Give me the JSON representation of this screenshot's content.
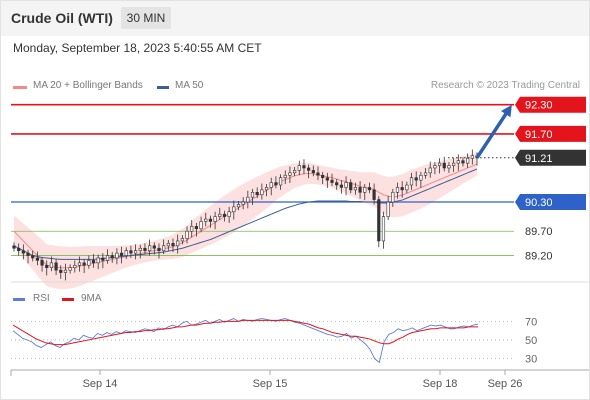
{
  "header": {
    "title": "Crude Oil (WTI)",
    "timeframe": "30 MIN"
  },
  "timestamp": "Monday, September 18, 2023 5:40:55 AM CET",
  "legend": {
    "ma20_label": "MA 20 + Bollinger Bands",
    "ma50_label": "MA 50",
    "copyright": "Research © 2023 Trading Central",
    "rsi_label": "RSI",
    "rsi_ma_label": "9MA"
  },
  "colors": {
    "resistance": "#e3141c",
    "support": "#2f62c8",
    "minor_support": "#79b94f",
    "current_price": "#333333",
    "ma20": "#f3898b",
    "ma50": "#3b5f9a",
    "bollinger_fill": "#fde0e0",
    "candle_up": "#ffffff",
    "candle_down": "#333333",
    "arrow": "#2e60b0",
    "rsi": "#5b7fd6",
    "rsi_ma": "#e0161d"
  },
  "chart_data": [
    {
      "type": "candlestick",
      "title": "",
      "ylim": [
        88.8,
        92.5
      ],
      "x_ticks": [
        "Sep 14",
        "Sep 15",
        "Sep 18",
        "Sep 26"
      ],
      "levels": [
        {
          "name": "resistance",
          "value": 92.3,
          "label": "92.30",
          "style": "resistance"
        },
        {
          "name": "resistance",
          "value": 91.7,
          "label": "91.70",
          "style": "resistance"
        },
        {
          "name": "last-price",
          "value": 91.21,
          "label": "91.21",
          "style": "current"
        },
        {
          "name": "pivot",
          "value": 90.3,
          "label": "90.30",
          "style": "support"
        },
        {
          "name": "support",
          "value": 89.7,
          "label": "89.70",
          "style": "minor"
        },
        {
          "name": "support",
          "value": 89.2,
          "label": "89.20",
          "style": "minor"
        }
      ],
      "close": [
        89.35,
        89.3,
        89.25,
        89.2,
        89.15,
        89.1,
        89.0,
        88.95,
        89.05,
        88.9,
        88.85,
        88.9,
        88.95,
        89.0,
        89.05,
        89.0,
        89.1,
        89.05,
        89.15,
        89.1,
        89.2,
        89.15,
        89.25,
        89.2,
        89.3,
        89.25,
        89.3,
        89.35,
        89.3,
        89.4,
        89.35,
        89.3,
        89.4,
        89.45,
        89.4,
        89.5,
        89.55,
        89.7,
        89.8,
        89.75,
        89.9,
        89.95,
        89.9,
        90.0,
        90.05,
        90.0,
        90.1,
        90.2,
        90.25,
        90.3,
        90.4,
        90.5,
        90.45,
        90.55,
        90.6,
        90.7,
        90.65,
        90.8,
        90.85,
        90.9,
        90.95,
        91.05,
        91.0,
        90.95,
        90.9,
        90.85,
        90.8,
        90.75,
        90.7,
        90.65,
        90.6,
        90.7,
        90.55,
        90.6,
        90.5,
        90.6,
        90.55,
        90.35,
        89.5,
        90.0,
        90.3,
        90.5,
        90.6,
        90.55,
        90.65,
        90.8,
        90.75,
        90.85,
        90.9,
        91.0,
        91.05,
        91.1,
        91.0,
        91.05,
        91.1,
        91.15,
        91.1,
        91.2,
        91.25,
        91.21
      ],
      "ma20": [
        89.7,
        89.6,
        89.5,
        89.4,
        89.3,
        89.2,
        89.1,
        89.0,
        88.98,
        88.96,
        88.95,
        88.95,
        88.95,
        88.96,
        88.98,
        89.0,
        89.02,
        89.04,
        89.06,
        89.08,
        89.1,
        89.12,
        89.14,
        89.16,
        89.18,
        89.2,
        89.22,
        89.24,
        89.26,
        89.28,
        89.3,
        89.32,
        89.34,
        89.36,
        89.38,
        89.42,
        89.46,
        89.52,
        89.58,
        89.64,
        89.7,
        89.76,
        89.82,
        89.88,
        89.94,
        90.0,
        90.06,
        90.12,
        90.18,
        90.24,
        90.3,
        90.36,
        90.42,
        90.48,
        90.54,
        90.6,
        90.66,
        90.72,
        90.76,
        90.8,
        90.84,
        90.86,
        90.88,
        90.89,
        90.88,
        90.86,
        90.84,
        90.82,
        90.8,
        90.77,
        90.74,
        90.72,
        90.68,
        90.66,
        90.62,
        90.6,
        90.58,
        90.56,
        90.5,
        90.45,
        90.42,
        90.4,
        90.42,
        90.44,
        90.48,
        90.52,
        90.56,
        90.6,
        90.64,
        90.68,
        90.72,
        90.76,
        90.8,
        90.84,
        90.88,
        90.92,
        90.96,
        91.0,
        91.04,
        91.08
      ],
      "ma50": [
        89.4,
        89.35,
        89.3,
        89.25,
        89.2,
        89.18,
        89.16,
        89.15,
        89.14,
        89.13,
        89.12,
        89.12,
        89.12,
        89.12,
        89.12,
        89.12,
        89.12,
        89.12,
        89.13,
        89.14,
        89.15,
        89.16,
        89.17,
        89.18,
        89.19,
        89.2,
        89.21,
        89.22,
        89.23,
        89.24,
        89.25,
        89.26,
        89.27,
        89.29,
        89.31,
        89.33,
        89.35,
        89.38,
        89.41,
        89.44,
        89.47,
        89.5,
        89.53,
        89.57,
        89.61,
        89.65,
        89.69,
        89.73,
        89.77,
        89.81,
        89.85,
        89.89,
        89.93,
        89.97,
        90.01,
        90.05,
        90.09,
        90.13,
        90.17,
        90.2,
        90.23,
        90.26,
        90.28,
        90.3,
        90.31,
        90.32,
        90.32,
        90.32,
        90.32,
        90.32,
        90.32,
        90.32,
        90.31,
        90.31,
        90.31,
        90.3,
        90.3,
        90.3,
        90.28,
        90.28,
        90.28,
        90.3,
        90.32,
        90.34,
        90.38,
        90.42,
        90.46,
        90.5,
        90.54,
        90.58,
        90.62,
        90.66,
        90.7,
        90.74,
        90.78,
        90.82,
        90.86,
        90.9,
        90.94,
        90.98
      ]
    },
    {
      "type": "line",
      "title": "",
      "ylim": [
        20,
        80
      ],
      "y_ticks": [
        70,
        50,
        30
      ],
      "guides": [
        70,
        50,
        30
      ],
      "series": [
        {
          "name": "RSI",
          "values": [
            60,
            56,
            52,
            50,
            48,
            44,
            42,
            45,
            48,
            44,
            42,
            46,
            48,
            52,
            50,
            55,
            53,
            52,
            57,
            55,
            58,
            56,
            59,
            57,
            60,
            59,
            58,
            60,
            62,
            61,
            59,
            63,
            61,
            64,
            66,
            64,
            68,
            70,
            66,
            67,
            69,
            71,
            68,
            70,
            72,
            69,
            71,
            73,
            70,
            72,
            71,
            70,
            72,
            73,
            72,
            71,
            70,
            72,
            73,
            71,
            69,
            68,
            66,
            64,
            62,
            60,
            58,
            56,
            55,
            53,
            54,
            57,
            52,
            54,
            50,
            46,
            40,
            30,
            26,
            48,
            56,
            58,
            62,
            60,
            61,
            63,
            60,
            62,
            64,
            66,
            65,
            66,
            64,
            62,
            62,
            64,
            65,
            64,
            66,
            67
          ]
        },
        {
          "name": "9MA",
          "values": [
            66,
            63,
            60,
            57,
            54,
            51,
            49,
            47,
            46,
            45,
            45,
            45,
            46,
            47,
            48,
            49,
            50,
            51,
            52,
            53,
            54,
            55,
            56,
            57,
            58,
            58,
            59,
            59,
            60,
            60,
            61,
            61,
            62,
            62,
            63,
            64,
            64,
            65,
            66,
            66,
            67,
            68,
            68,
            69,
            69,
            70,
            70,
            70,
            70,
            71,
            71,
            71,
            71,
            71,
            71,
            71,
            71,
            71,
            71,
            71,
            70,
            69,
            68,
            67,
            65,
            63,
            62,
            60,
            58,
            57,
            56,
            55,
            54,
            54,
            53,
            52,
            51,
            49,
            47,
            46,
            46,
            48,
            51,
            53,
            56,
            58,
            59,
            60,
            61,
            62,
            62,
            63,
            63,
            63,
            63,
            63,
            63,
            64,
            64,
            64
          ]
        }
      ]
    }
  ]
}
